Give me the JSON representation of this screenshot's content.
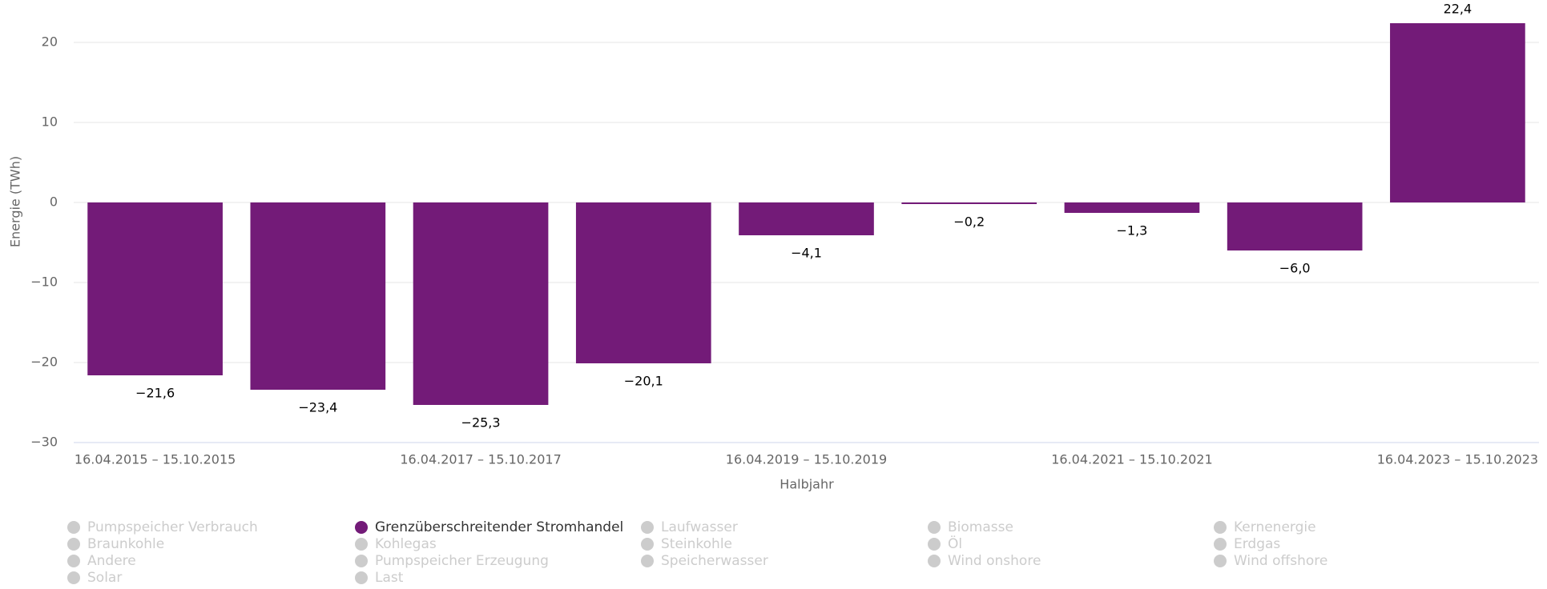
{
  "chart_data": {
    "type": "bar",
    "ylabel": "Energie (TWh)",
    "xlabel": "Halbjahr",
    "categories": [
      "16.04.2015 – 15.10.2015",
      null,
      "16.04.2017 – 15.10.2017",
      null,
      "16.04.2019 – 15.10.2019",
      null,
      "16.04.2021 – 15.10.2021",
      null,
      "16.04.2023 – 15.10.2023"
    ],
    "ylim": [
      -30,
      25
    ],
    "yticks": [
      {
        "value": -30,
        "label": "−30"
      },
      {
        "value": -20,
        "label": "−20"
      },
      {
        "value": -10,
        "label": "−10"
      },
      0,
      10,
      20
    ],
    "grid": true,
    "series": [
      {
        "name": "Pumpspeicher Verbrauch",
        "color": "#cccccc",
        "visible": false
      },
      {
        "name": "Grenzüberschreitender Stromhandel",
        "color": "#731b78",
        "visible": true,
        "values": [
          -21.6,
          -23.4,
          -25.3,
          -20.1,
          -4.1,
          -0.2,
          -1.3,
          -6.0,
          22.4
        ],
        "value_labels": [
          "−21,6",
          "−23,4",
          "−25,3",
          "−20,1",
          "−4,1",
          "−0,2",
          "−1,3",
          "−6,0",
          "22,4"
        ]
      },
      {
        "name": "Laufwasser",
        "color": "#cccccc",
        "visible": false
      },
      {
        "name": "Biomasse",
        "color": "#cccccc",
        "visible": false
      },
      {
        "name": "Kernenergie",
        "color": "#cccccc",
        "visible": false
      },
      {
        "name": "Braunkohle",
        "color": "#cccccc",
        "visible": false
      },
      {
        "name": "Kohlegas",
        "color": "#cccccc",
        "visible": false
      },
      {
        "name": "Steinkohle",
        "color": "#cccccc",
        "visible": false
      },
      {
        "name": "Öl",
        "color": "#cccccc",
        "visible": false
      },
      {
        "name": "Erdgas",
        "color": "#cccccc",
        "visible": false
      },
      {
        "name": "Andere",
        "color": "#cccccc",
        "visible": false
      },
      {
        "name": "Pumpspeicher Erzeugung",
        "color": "#cccccc",
        "visible": false
      },
      {
        "name": "Speicherwasser",
        "color": "#cccccc",
        "visible": false
      },
      {
        "name": "Wind onshore",
        "color": "#cccccc",
        "visible": false
      },
      {
        "name": "Wind offshore",
        "color": "#cccccc",
        "visible": false
      },
      {
        "name": "Solar",
        "color": "#cccccc",
        "visible": false
      },
      {
        "name": "Last",
        "color": "#cccccc",
        "visible": false
      }
    ]
  }
}
